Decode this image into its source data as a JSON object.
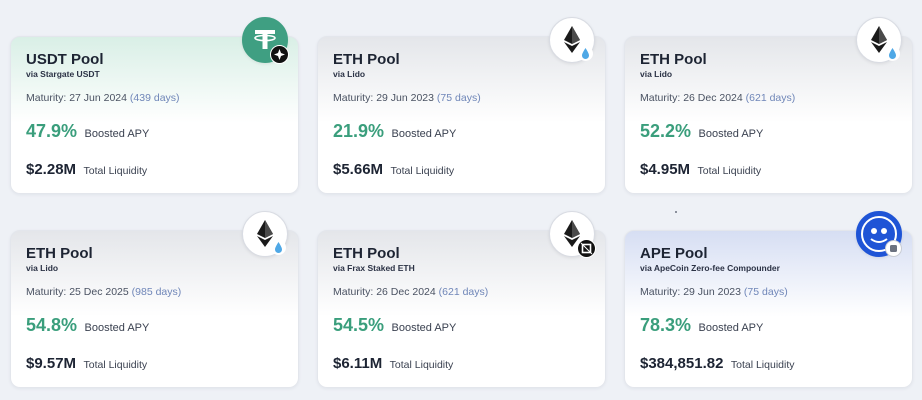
{
  "pools": [
    {
      "title": "USDT Pool",
      "via": "via Stargate USDT",
      "maturity_label": "Maturity:",
      "maturity_date": "27 Jun 2024",
      "days": "(439 days)",
      "apy": "47.9%",
      "apy_label": "Boosted APY",
      "liquidity": "$2.28M",
      "liquidity_label": "Total Liquidity",
      "token_icon": "tether-icon",
      "badge_icon": "stargate-icon"
    },
    {
      "title": "ETH Pool",
      "via": "via Lido",
      "maturity_label": "Maturity:",
      "maturity_date": "29 Jun 2023",
      "days": "(75 days)",
      "apy": "21.9%",
      "apy_label": "Boosted APY",
      "liquidity": "$5.66M",
      "liquidity_label": "Total Liquidity",
      "token_icon": "ethereum-icon",
      "badge_icon": "lido-icon"
    },
    {
      "title": "ETH Pool",
      "via": "via Lido",
      "maturity_label": "Maturity:",
      "maturity_date": "26 Dec 2024",
      "days": "(621 days)",
      "apy": "52.2%",
      "apy_label": "Boosted APY",
      "liquidity": "$4.95M",
      "liquidity_label": "Total Liquidity",
      "token_icon": "ethereum-icon",
      "badge_icon": "lido-icon"
    },
    {
      "title": "ETH Pool",
      "via": "via Lido",
      "maturity_label": "Maturity:",
      "maturity_date": "25 Dec 2025",
      "days": "(985 days)",
      "apy": "54.8%",
      "apy_label": "Boosted APY",
      "liquidity": "$9.57M",
      "liquidity_label": "Total Liquidity",
      "token_icon": "ethereum-icon",
      "badge_icon": "lido-icon"
    },
    {
      "title": "ETH Pool",
      "via": "via Frax Staked ETH",
      "maturity_label": "Maturity:",
      "maturity_date": "26 Dec 2024",
      "days": "(621 days)",
      "apy": "54.5%",
      "apy_label": "Boosted APY",
      "liquidity": "$6.11M",
      "liquidity_label": "Total Liquidity",
      "token_icon": "ethereum-icon",
      "badge_icon": "frax-icon"
    },
    {
      "title": "APE Pool",
      "via": "via ApeCoin Zero-fee Compounder",
      "maturity_label": "Maturity:",
      "maturity_date": "29 Jun 2023",
      "days": "(75 days)",
      "apy": "78.3%",
      "apy_label": "Boosted APY",
      "liquidity": "$384,851.82",
      "liquidity_label": "Total Liquidity",
      "token_icon": "apecoin-icon",
      "badge_icon": "compounder-icon"
    }
  ],
  "colors": {
    "apy": "#3a9e7c",
    "days": "#6f86b8",
    "tether": "#3f9f82",
    "ape": "#1f54d6"
  }
}
